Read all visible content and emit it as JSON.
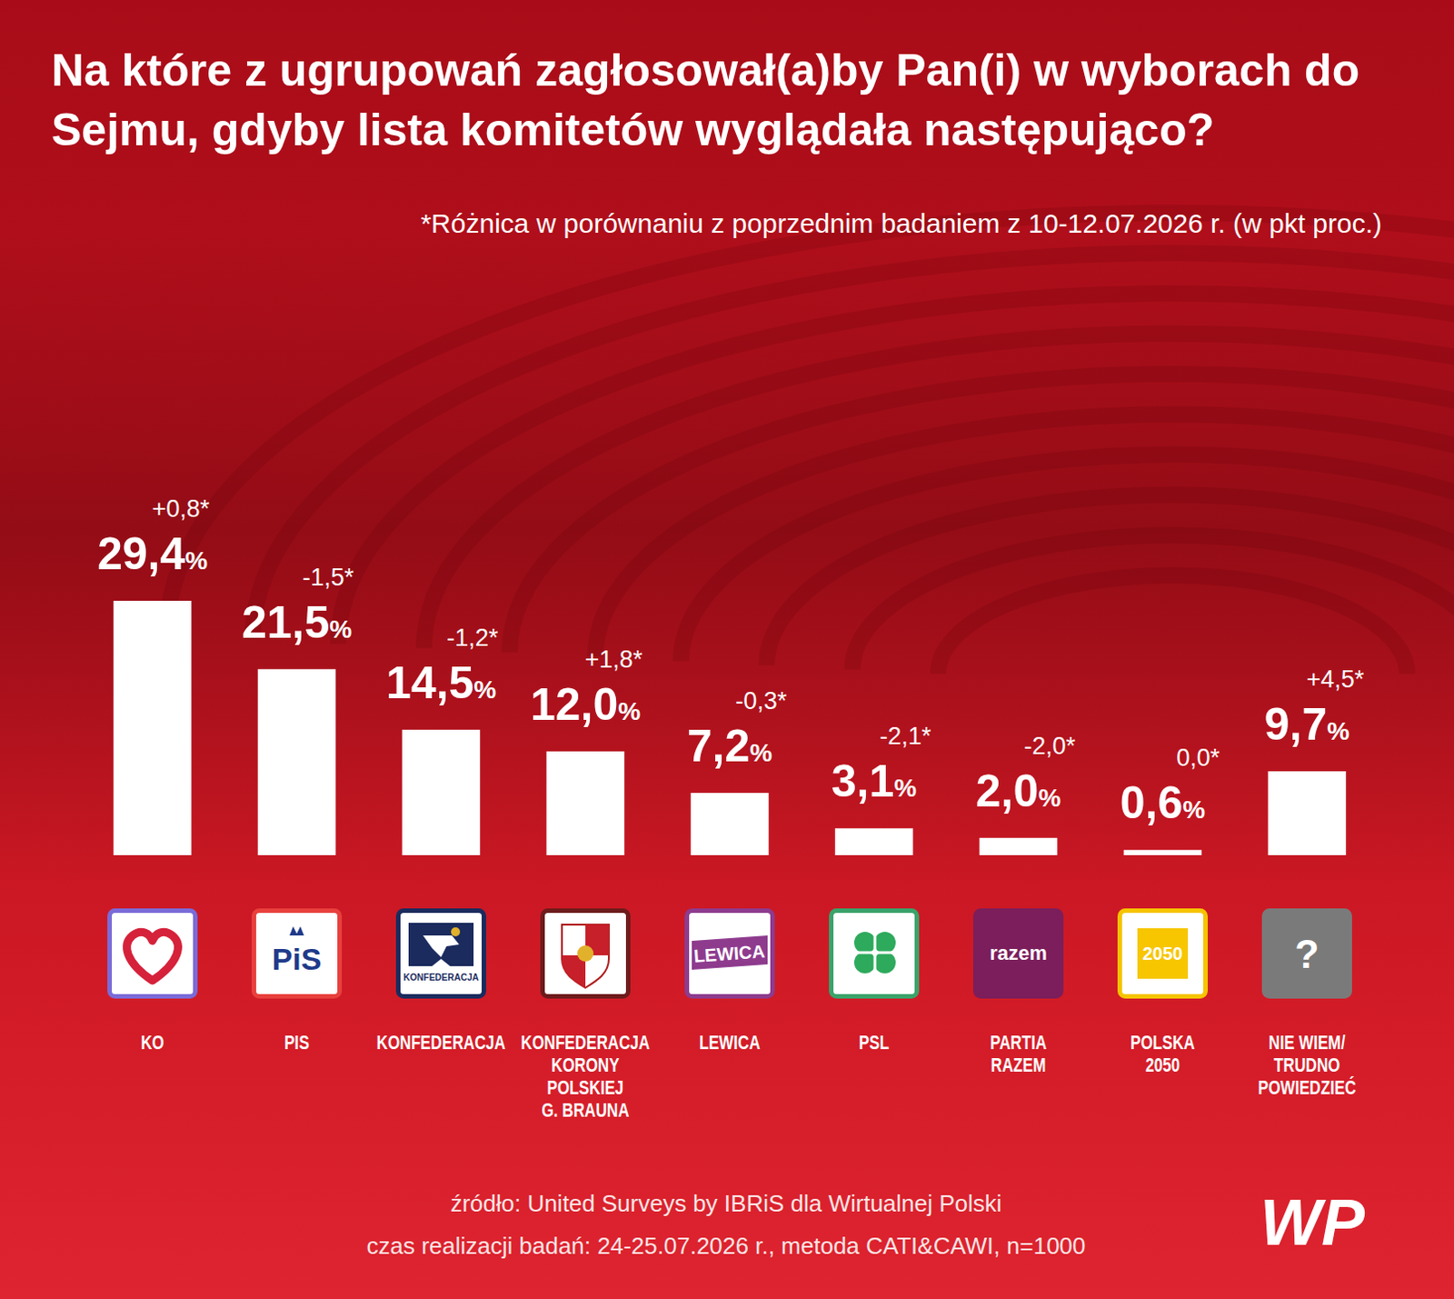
{
  "chart_data": {
    "type": "bar",
    "title": "Na które z ugrupowań zagłosował(a)by Pan(i) w wyborach do Sejmu, gdyby lista komitetów wyglądała następująco?",
    "subtitle": "*Różnica w porównaniu z poprzednim badaniem z 10-12.07.2026 r. (w pkt proc.)",
    "categories": [
      "KO",
      "PIS",
      "KONFEDERACJA",
      "KONFEDERACJA KORONY POLSKIEJ G. BRAUNA",
      "LEWICA",
      "PSL",
      "PARTIA RAZEM",
      "POLSKA 2050",
      "NIE WIEM/ TRUDNO POWIEDZIEĆ"
    ],
    "values": [
      29.4,
      21.5,
      14.5,
      12.0,
      7.2,
      3.1,
      2.0,
      0.6,
      9.7
    ],
    "value_labels": [
      "29,4%",
      "21,5%",
      "14,5%",
      "12,0%",
      "7,2%",
      "3,1%",
      "2,0%",
      "0,6%",
      "9,7%"
    ],
    "change_labels": [
      "+0,8*",
      "-1,5*",
      "-1,2*",
      "+1,8*",
      "-0,3*",
      "-2,1*",
      "-2,0*",
      "0,0*",
      "+4,5*"
    ],
    "logo_texts": [
      null,
      "PiS",
      "KONFEDERACJA",
      null,
      "LEWICA",
      null,
      "razem",
      "2050",
      "?"
    ],
    "color": "#ffffff",
    "data_labels": true,
    "tick_labels": "x",
    "grid": false,
    "source": "źródło: United Surveys by IBRiS dla Wirtualnej Polski",
    "note": "czas realizacji badań: 24-25.07.2026 r., metoda CATI&CAWI, n=1000",
    "brand": "WP"
  }
}
